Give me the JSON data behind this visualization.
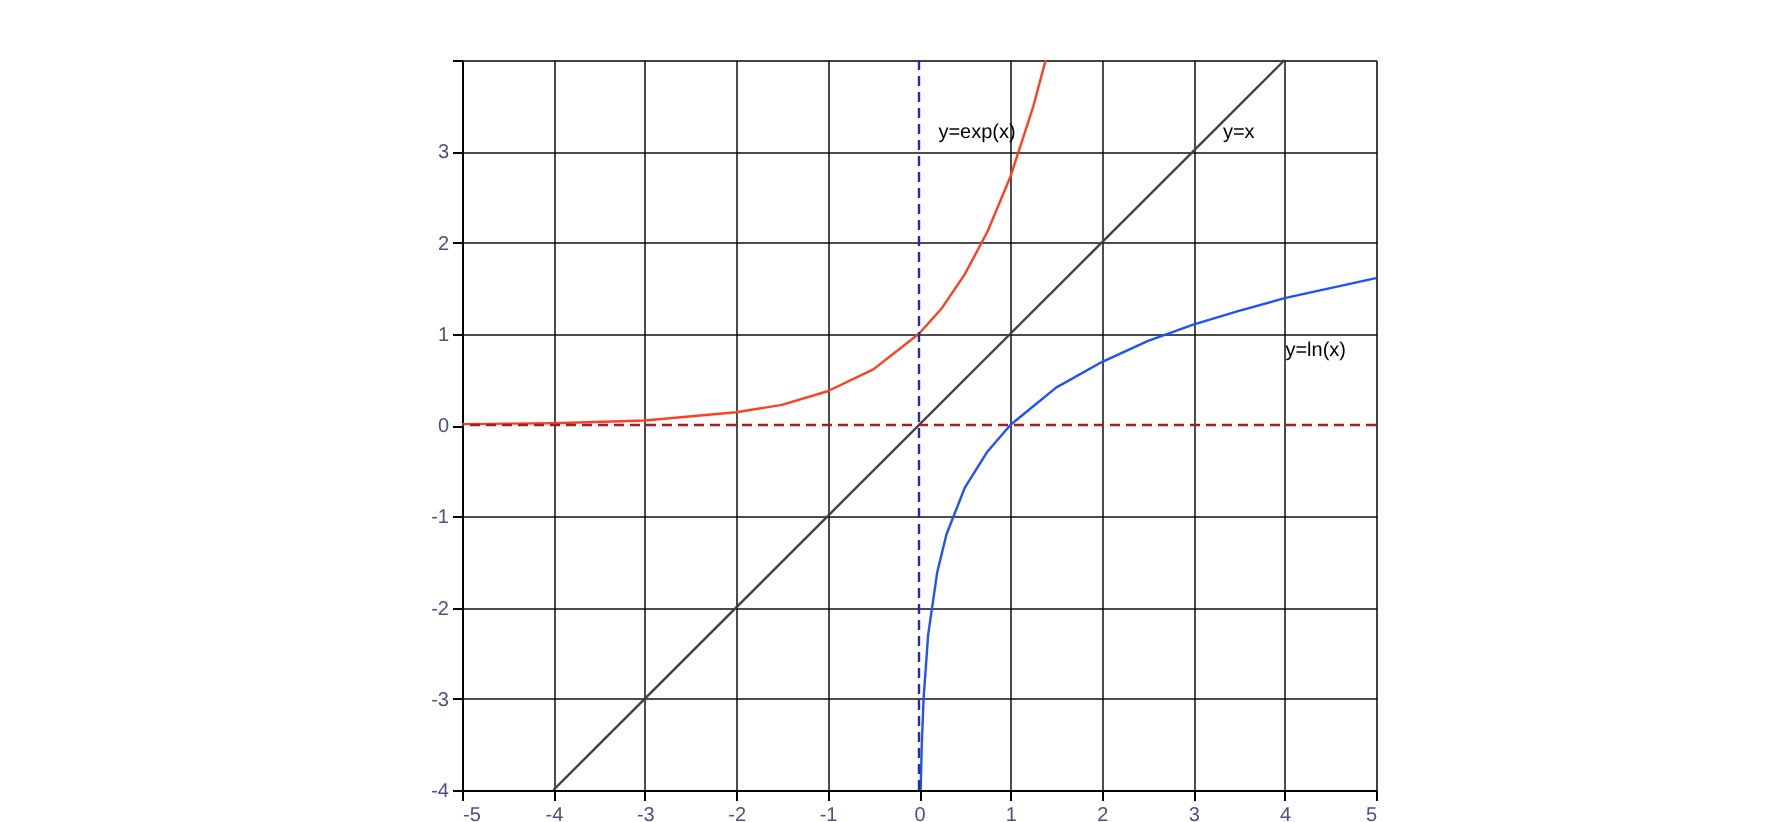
{
  "chart_data": {
    "type": "line",
    "series": [
      {
        "name": "y=exp(x)",
        "color": "#ff4020",
        "x": [
          -5,
          -4,
          -3,
          -2,
          -1.5,
          -1,
          -0.5,
          0,
          0.25,
          0.5,
          0.75,
          1,
          1.25,
          1.386
        ],
        "values": [
          0.01,
          0.02,
          0.05,
          0.14,
          0.22,
          0.37,
          0.61,
          1,
          1.28,
          1.65,
          2.12,
          2.72,
          3.49,
          4
        ]
      },
      {
        "name": "y=x",
        "color": "#404040",
        "x": [
          -4,
          4
        ],
        "values": [
          -4,
          4
        ]
      },
      {
        "name": "y=ln(x)",
        "color": "#2050ff",
        "x": [
          0.0183,
          0.03,
          0.05,
          0.1,
          0.2,
          0.3,
          0.5,
          0.75,
          1,
          1.5,
          2,
          2.5,
          3,
          3.5,
          4,
          4.5,
          5
        ],
        "values": [
          -4,
          -3.51,
          -3,
          -2.3,
          -1.61,
          -1.2,
          -0.69,
          -0.29,
          0,
          0.41,
          0.69,
          0.92,
          1.1,
          1.25,
          1.39,
          1.5,
          1.61
        ]
      }
    ],
    "ref_lines": [
      {
        "axis": "x",
        "value": 0,
        "color": "#2030a0",
        "line_style": "dashed"
      },
      {
        "axis": "y",
        "value": 0,
        "color": "#a02020",
        "line_style": "dashed"
      }
    ],
    "xlim": [
      -5,
      5
    ],
    "ylim": [
      -4,
      4
    ],
    "xticks": [
      -5,
      -4,
      -3,
      -2,
      -1,
      0,
      1,
      2,
      3,
      4,
      5
    ],
    "yticks": [
      -4,
      -3,
      -2,
      -1,
      0,
      1,
      2,
      3,
      {
        "value": 4,
        "label": null
      }
    ],
    "grid": true,
    "legend": false,
    "marker": "none",
    "line_style": "solid"
  }
}
